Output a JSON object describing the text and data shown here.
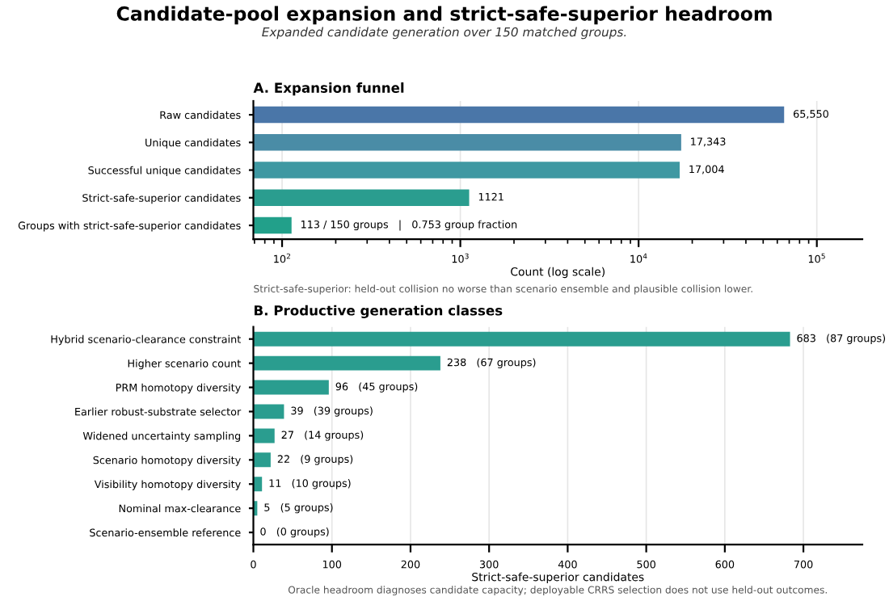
{
  "chart_data": [
    {
      "type": "bar",
      "orientation": "horizontal",
      "title": "Candidate-pool expansion and strict-safe-superior headroom",
      "subtitle": "Expanded candidate generation over 150 matched groups.",
      "categories": [
        "Raw candidates",
        "Unique candidates",
        "Successful unique candidates",
        "Strict-safe-superior candidates",
        "Groups with strict-safe-superior candidates"
      ],
      "values": [
        65550,
        17343,
        17004,
        1121,
        113
      ],
      "colors": [
        "#4a76a8",
        "#4a8ca6",
        "#3f98a2",
        "#2a9d8f",
        "#22a08a"
      ],
      "value_labels": [
        "65,550",
        "17,343",
        "17,004",
        "1121",
        "113 / 150 groups   |   0.753 group fraction"
      ],
      "xlabel": "Count (log scale)",
      "log": "x",
      "xlim": [
        69,
        180000
      ],
      "xticks": [
        {
          "value": 100,
          "label": "10$^{2}$"
        },
        {
          "value": 1000,
          "label": "10$^{3}$"
        },
        {
          "value": 10000,
          "label": "10$^{4}$"
        },
        {
          "value": 100000,
          "label": "10$^{5}$"
        }
      ],
      "grid": "x",
      "annotations": [
        "A. Expansion funnel",
        "Strict-safe-superior: held-out collision no worse than scenario ensemble and plausible collision lower."
      ]
    },
    {
      "type": "bar",
      "orientation": "horizontal",
      "categories": [
        "Hybrid scenario-clearance constraint",
        "Higher scenario count",
        "PRM homotopy diversity",
        "Earlier robust-substrate selector",
        "Widened uncertainty sampling",
        "Scenario homotopy diversity",
        "Visibility homotopy diversity",
        "Nominal max-clearance",
        "Scenario-ensemble reference"
      ],
      "values": [
        683,
        238,
        96,
        39,
        27,
        22,
        11,
        5,
        0
      ],
      "colors": [
        "#2a9d8f",
        "#2a9d8f",
        "#2a9d8f",
        "#2a9d8f",
        "#2a9d8f",
        "#2a9d8f",
        "#2a9d8f",
        "#2a9d8f",
        "#2a9d8f"
      ],
      "value_labels": [
        "683   (87 groups)",
        "238   (67 groups)",
        "96   (45 groups)",
        "39   (39 groups)",
        "27   (14 groups)",
        "22   (9 groups)",
        "11   (10 groups)",
        "5   (5 groups)",
        "0   (0 groups)"
      ],
      "xlabel": "Strict-safe-superior candidates",
      "xlim": [
        0,
        775
      ],
      "xticks": [
        0,
        100,
        200,
        300,
        400,
        500,
        600,
        700
      ],
      "grid": "x",
      "annotations": [
        "B. Productive generation classes",
        "Oracle headroom diagnoses candidate capacity; deployable CRRS selection does not use held-out outcomes."
      ]
    }
  ]
}
